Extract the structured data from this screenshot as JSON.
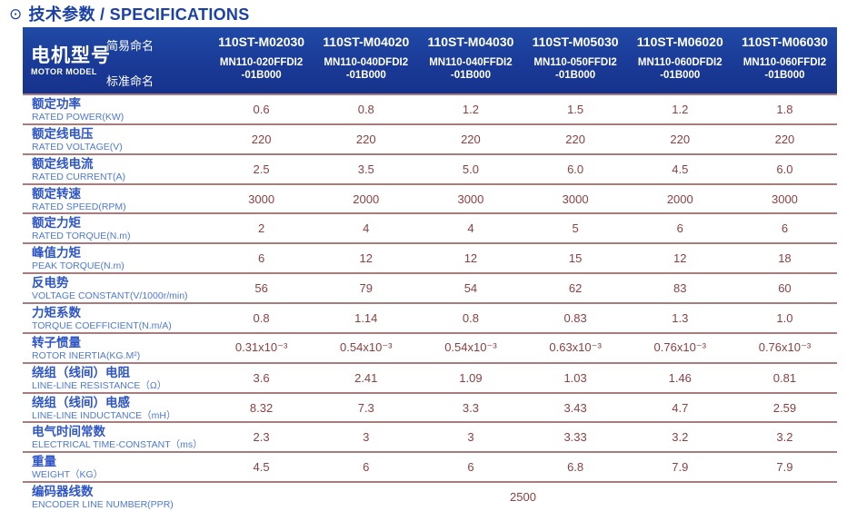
{
  "title": {
    "icon": "⊙",
    "text": "技术参数 / SPECIFICATIONS"
  },
  "colors": {
    "header_blue": "#1a3a97",
    "title_blue": "#1c41a6",
    "label_blue": "#2d55c5",
    "label_blue_light": "#4e79d6",
    "value_maroon": "#8f4040",
    "separator": "#a87c7c"
  },
  "table": {
    "model_header": {
      "zh": "电机型号",
      "en": "MOTOR MODEL",
      "simple_name_label": "简易命名",
      "standard_name_label": "标准命名"
    },
    "columns": [
      {
        "simple": "110ST-M02030",
        "standard_line1": "MN110-020FFDI2",
        "standard_line2": "-01B000"
      },
      {
        "simple": "110ST-M04020",
        "standard_line1": "MN110-040DFDI2",
        "standard_line2": "-01B000"
      },
      {
        "simple": "110ST-M04030",
        "standard_line1": "MN110-040FFDI2",
        "standard_line2": "-01B000"
      },
      {
        "simple": "110ST-M05030",
        "standard_line1": "MN110-050FFDI2",
        "standard_line2": "-01B000"
      },
      {
        "simple": "110ST-M06020",
        "standard_line1": "MN110-060DFDI2",
        "standard_line2": "-01B000"
      },
      {
        "simple": "110ST-M06030",
        "standard_line1": "MN110-060FFDI2",
        "standard_line2": "-01B000"
      }
    ],
    "rows": [
      {
        "zh": "额定功率",
        "en": "RATED POWER(KW)",
        "values": [
          "0.6",
          "0.8",
          "1.2",
          "1.5",
          "1.2",
          "1.8"
        ]
      },
      {
        "zh": "额定线电压",
        "en": "RATED VOLTAGE(V)",
        "values": [
          "220",
          "220",
          "220",
          "220",
          "220",
          "220"
        ]
      },
      {
        "zh": "额定线电流",
        "en": "RATED CURRENT(A)",
        "values": [
          "2.5",
          "3.5",
          "5.0",
          "6.0",
          "4.5",
          "6.0"
        ]
      },
      {
        "zh": "额定转速",
        "en": "RATED SPEED(RPM)",
        "values": [
          "3000",
          "2000",
          "3000",
          "3000",
          "2000",
          "3000"
        ]
      },
      {
        "zh": "额定力矩",
        "en": "RATED TORQUE(N.m)",
        "values": [
          "2",
          "4",
          "4",
          "5",
          "6",
          "6"
        ]
      },
      {
        "zh": "峰值力矩",
        "en": "PEAK TORQUE(N.m)",
        "values": [
          "6",
          "12",
          "12",
          "15",
          "12",
          "18"
        ]
      },
      {
        "zh": "反电势",
        "en": "VOLTAGE CONSTANT(V/1000r/min)",
        "values": [
          "56",
          "79",
          "54",
          "62",
          "83",
          "60"
        ]
      },
      {
        "zh": "力矩系数",
        "en": "TORQUE COEFFICIENT(N.m/A)",
        "values": [
          "0.8",
          "1.14",
          "0.8",
          "0.83",
          "1.3",
          "1.0"
        ]
      },
      {
        "zh": "转子惯量",
        "en": "ROTOR INERTIA(KG.M²)",
        "values": [
          "0.31x10⁻³",
          "0.54x10⁻³",
          "0.54x10⁻³",
          "0.63x10⁻³",
          "0.76x10⁻³",
          "0.76x10⁻³"
        ]
      },
      {
        "zh": "绕组（线间）电阻",
        "en": "LINE-LINE RESISTANCE（Ω）",
        "values": [
          "3.6",
          "2.41",
          "1.09",
          "1.03",
          "1.46",
          "0.81"
        ]
      },
      {
        "zh": "绕组（线间）电感",
        "en": "LINE-LINE INDUCTANCE（mH）",
        "values": [
          "8.32",
          "7.3",
          "3.3",
          "3.43",
          "4.7",
          "2.59"
        ]
      },
      {
        "zh": "电气时间常数",
        "en": "ELECTRICAL TIME-CONSTANT（ms）",
        "values": [
          "2.3",
          "3",
          "3",
          "3.33",
          "3.2",
          "3.2"
        ]
      },
      {
        "zh": "重量",
        "en": "WEIGHT（KG）",
        "values": [
          "4.5",
          "6",
          "6",
          "6.8",
          "7.9",
          "7.9"
        ]
      },
      {
        "zh": "编码器线数",
        "en": "ENCODER LINE NUMBER(PPR)",
        "span_value": "2500"
      }
    ]
  }
}
